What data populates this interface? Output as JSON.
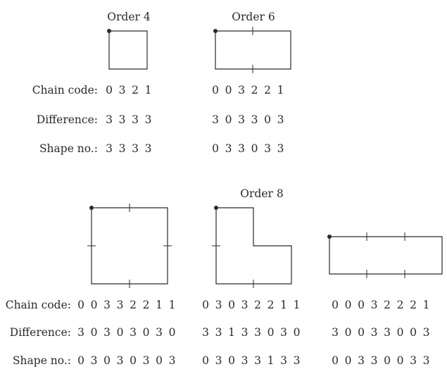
{
  "row_labels": {
    "chain": "Chain code:",
    "difference": "Difference:",
    "shape": "Shape no.:"
  },
  "orders": {
    "order4": "Order 4",
    "order6": "Order 6",
    "order8": "Order 8"
  },
  "sequences": {
    "o4": {
      "chain": [
        "0",
        "3",
        "2",
        "1"
      ],
      "difference": [
        "3",
        "3",
        "3",
        "3"
      ],
      "shape": [
        "3",
        "3",
        "3",
        "3"
      ]
    },
    "o6": {
      "chain": [
        "0",
        "0",
        "3",
        "2",
        "2",
        "1"
      ],
      "difference": [
        "3",
        "0",
        "3",
        "3",
        "0",
        "3"
      ],
      "shape": [
        "0",
        "3",
        "3",
        "0",
        "3",
        "3"
      ]
    },
    "o8a": {
      "chain": [
        "0",
        "0",
        "3",
        "3",
        "2",
        "2",
        "1",
        "1"
      ],
      "difference": [
        "3",
        "0",
        "3",
        "0",
        "3",
        "0",
        "3",
        "0"
      ],
      "shape": [
        "0",
        "3",
        "0",
        "3",
        "0",
        "3",
        "0",
        "3"
      ]
    },
    "o8b": {
      "chain": [
        "0",
        "3",
        "0",
        "3",
        "2",
        "2",
        "1",
        "1"
      ],
      "difference": [
        "3",
        "3",
        "1",
        "3",
        "3",
        "0",
        "3",
        "0"
      ],
      "shape": [
        "0",
        "3",
        "0",
        "3",
        "3",
        "1",
        "3",
        "3"
      ]
    },
    "o8c": {
      "chain": [
        "0",
        "0",
        "0",
        "3",
        "2",
        "2",
        "2",
        "1"
      ],
      "difference": [
        "3",
        "0",
        "0",
        "3",
        "3",
        "0",
        "0",
        "3"
      ],
      "shape": [
        "0",
        "0",
        "3",
        "3",
        "0",
        "0",
        "3",
        "3"
      ]
    }
  },
  "colors": {
    "ink": "#2a2a2a"
  }
}
